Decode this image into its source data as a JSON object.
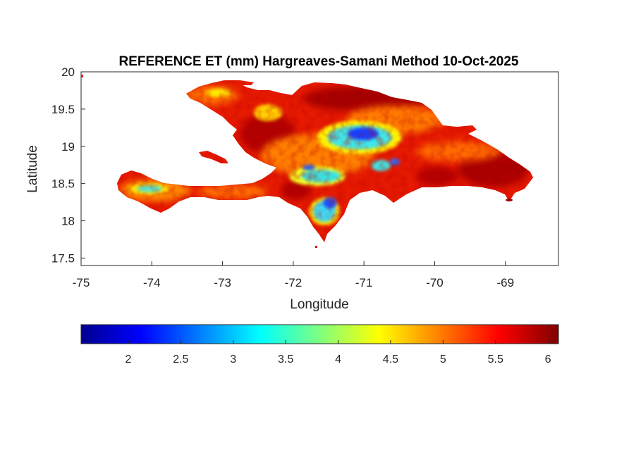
{
  "title": "REFERENCE ET (mm) Hargreaves-Samani Method  10-Oct-2025",
  "map": {
    "xlabel": "Longitude",
    "ylabel": "Latitude",
    "xlim": [
      -75,
      -68.25
    ],
    "ylim": [
      17.4,
      20
    ],
    "xticks": [
      -75,
      -74,
      -73,
      -72,
      -71,
      -70,
      -69
    ],
    "xtick_labels": [
      "-75",
      "-74",
      "-73",
      "-72",
      "-71",
      "-70",
      "-69"
    ],
    "yticks": [
      17.5,
      18,
      18.5,
      19,
      19.5,
      20
    ],
    "ytick_labels": [
      "17.5",
      "18",
      "18.5",
      "19",
      "19.5",
      "20"
    ],
    "region": "Hispaniola",
    "colors": {
      "land_base": "#e61a00",
      "hot": "#a00000",
      "orange": "#ff7a00",
      "yellow": "#fff000",
      "cyan": "#34e6e6",
      "blue": "#1540ff"
    }
  },
  "colorbar": {
    "colormap": "jet",
    "range": [
      1.55,
      6.1
    ],
    "ticks": [
      2,
      2.5,
      3,
      3.5,
      4,
      4.5,
      5,
      5.5,
      6
    ],
    "tick_labels": [
      "2",
      "2.5",
      "3",
      "3.5",
      "4",
      "4.5",
      "5",
      "5.5",
      "6"
    ]
  }
}
